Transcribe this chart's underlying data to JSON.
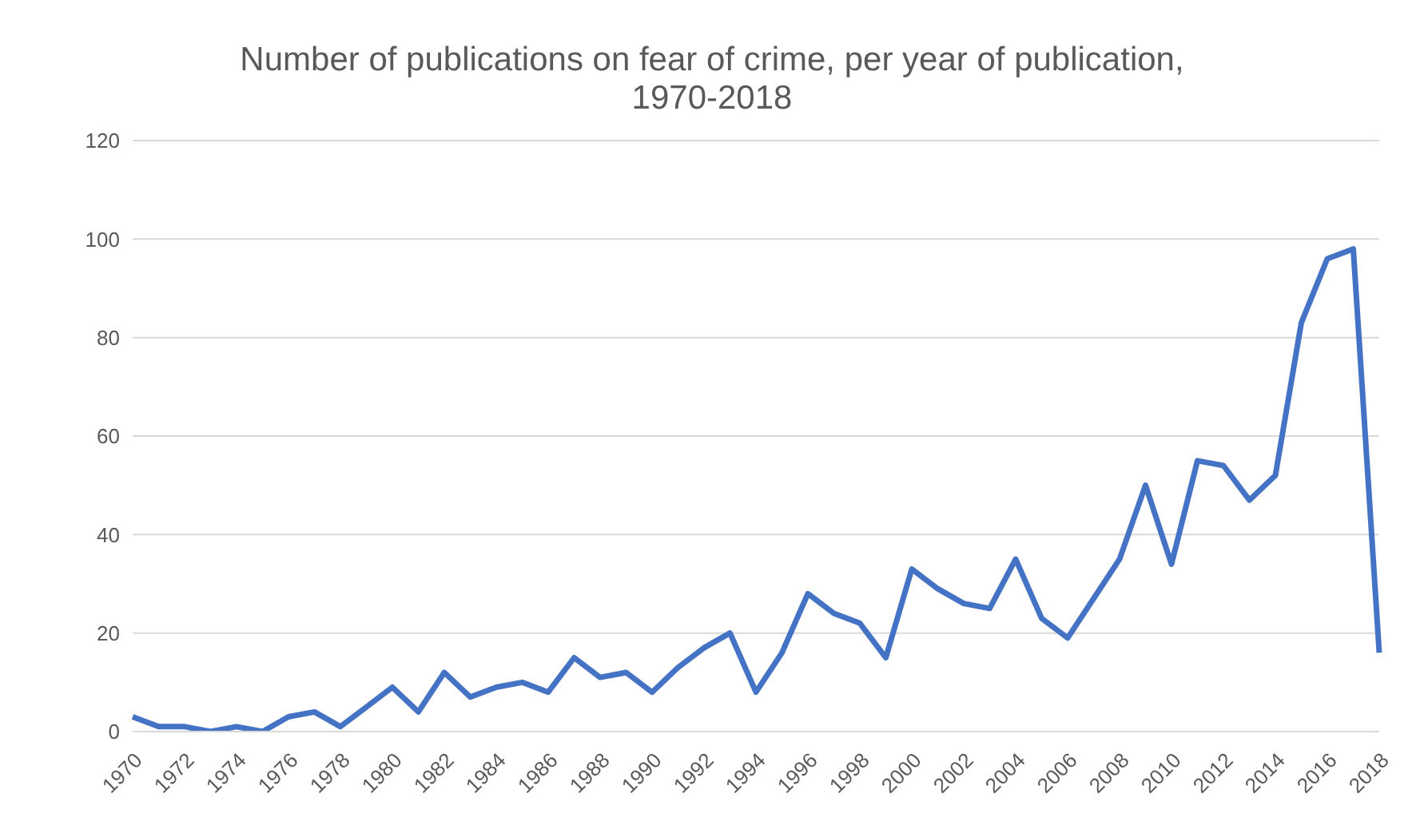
{
  "chart_data": {
    "type": "line",
    "title": "Number of publications on fear of crime, per year of publication, 1970-2018",
    "categories": [
      "1970",
      null,
      "1972",
      null,
      "1974",
      null,
      "1976",
      null,
      "1978",
      null,
      "1980",
      null,
      "1982",
      null,
      "1984",
      null,
      "1986",
      null,
      "1988",
      null,
      "1990",
      null,
      "1992",
      null,
      "1994",
      null,
      "1996",
      null,
      "1998",
      null,
      "2000",
      null,
      "2002",
      null,
      "2004",
      null,
      "2006",
      null,
      "2008",
      null,
      "2010",
      null,
      "2012",
      null,
      "2014",
      null,
      "2016",
      null,
      "2018"
    ],
    "series": [
      {
        "color": "#4472c4",
        "values": [
          3,
          1,
          1,
          0,
          1,
          0,
          3,
          4,
          1,
          5,
          9,
          4,
          12,
          7,
          9,
          10,
          8,
          15,
          11,
          12,
          8,
          13,
          17,
          20,
          8,
          16,
          28,
          24,
          22,
          15,
          33,
          29,
          26,
          25,
          35,
          23,
          19,
          27,
          35,
          50,
          34,
          55,
          54,
          47,
          52,
          83,
          96,
          98,
          16
        ]
      }
    ],
    "ylim": [
      0,
      120
    ],
    "yticks": [
      0,
      20,
      40,
      60,
      80,
      100,
      120
    ],
    "grid": "y",
    "marker": "none",
    "line_style": "solid"
  }
}
